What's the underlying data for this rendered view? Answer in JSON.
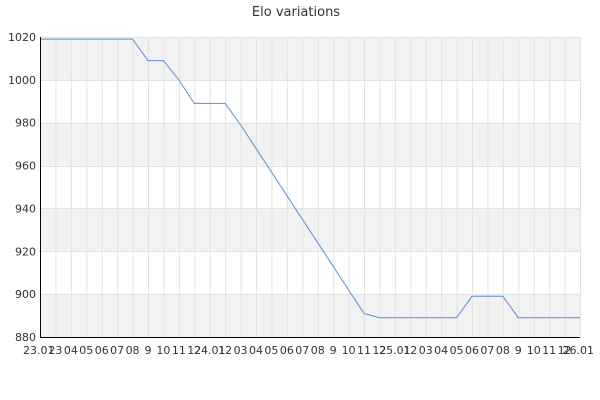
{
  "chart_data": {
    "type": "line",
    "title": "Elo variations",
    "xlabel": "",
    "ylabel": "",
    "ylim": [
      880,
      1020
    ],
    "yticks": [
      880,
      900,
      920,
      940,
      960,
      980,
      1000,
      1020
    ],
    "xtick_labels": [
      "23.01",
      "23",
      "04",
      "05",
      "06",
      "07",
      "08",
      "9",
      "10",
      "11",
      "12",
      "24.01",
      "12",
      "03",
      "04",
      "05",
      "06",
      "07",
      "08",
      "9",
      "10",
      "11",
      "12",
      "25.01",
      "12",
      "03",
      "04",
      "05",
      "06",
      "07",
      "08",
      "9",
      "10",
      "11",
      "12",
      "26.01"
    ],
    "grid": true,
    "legend": "none",
    "colors": {
      "line": "#5b8fd6",
      "grid": "#e3e3e3",
      "band": "#f2f2f2",
      "axis": "#000000"
    },
    "series": [
      {
        "x": [
          0,
          1,
          2,
          3,
          4,
          5,
          6,
          7,
          8,
          9,
          10,
          11,
          12,
          13,
          14,
          15,
          16,
          17,
          18,
          19,
          20,
          21,
          22,
          23,
          24,
          25,
          26,
          27,
          28,
          29,
          30,
          31,
          32,
          33,
          34,
          35
        ],
        "values": [
          1019,
          1019,
          1019,
          1019,
          1019,
          1019,
          1019,
          1009,
          1009,
          1000,
          989,
          989,
          989,
          979,
          968,
          957,
          946,
          935,
          924,
          913,
          902,
          891,
          889,
          889,
          889,
          889,
          889,
          889,
          899,
          899,
          899,
          889,
          889,
          889,
          889,
          889
        ]
      }
    ]
  }
}
